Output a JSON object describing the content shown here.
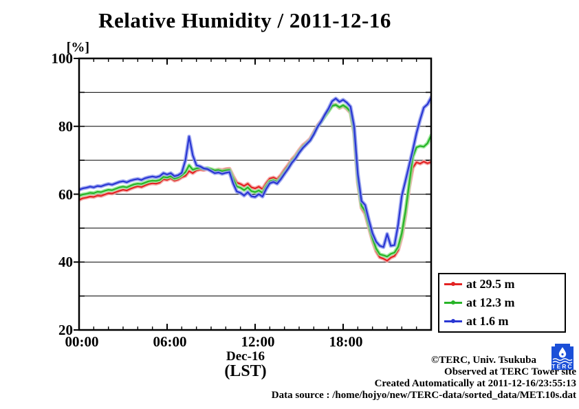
{
  "title": "Relative Humidity / 2011-12-16",
  "y_axis": {
    "unit_label": "[%]",
    "tick_labels": [
      {
        "value": 100,
        "text": "100"
      },
      {
        "value": 80,
        "text": "80"
      },
      {
        "value": 60,
        "text": "60"
      },
      {
        "value": 40,
        "text": "40"
      },
      {
        "value": 20,
        "text": "20"
      }
    ]
  },
  "x_axis": {
    "tick_labels": [
      {
        "hour": 0,
        "text": "00:00"
      },
      {
        "hour": 6,
        "text": "06:00"
      },
      {
        "hour": 12,
        "text": "12:00"
      },
      {
        "hour": 18,
        "text": "18:00"
      }
    ],
    "date_label": "Dec-16",
    "timezone_label": "(LST)"
  },
  "legend": {
    "items": [
      {
        "label": "at 29.5 m",
        "color": "#e32222",
        "halo": "#f5a0a0"
      },
      {
        "label": "at 12.3 m",
        "color": "#27b427",
        "halo": "#97e897"
      },
      {
        "label": "at 1.6 m",
        "color": "#2936d3",
        "halo": "#939cee"
      }
    ]
  },
  "footer": {
    "copyright": "©TERC, Univ. Tsukuba",
    "observed": "Observed at TERC Tower site",
    "created": "Created Automatically at 2011-12-16/23:55:13",
    "data_source": "Data source : /home/hojyo/new/TERC-data/sorted_data/MET.10s.dat"
  },
  "logo": {
    "text": "TERC",
    "color": "#1b4fd8"
  },
  "chart_data": {
    "type": "line",
    "title": "Relative Humidity / 2011-12-16",
    "xlabel": "Dec-16 (LST)",
    "ylabel": "[%]",
    "xlim": [
      0,
      24
    ],
    "ylim": [
      20,
      100
    ],
    "grid": "horizontal lines every 10%",
    "legend_position": "outside bottom-right",
    "x_unit": "hours",
    "x_start": 0,
    "x_step": 0.25,
    "series": [
      {
        "name": "at 29.5 m",
        "height_m": 29.5,
        "color": "#e32222",
        "halo": "#f5a0a0",
        "values": [
          58.3,
          58.8,
          59.0,
          59.3,
          59.2,
          59.6,
          59.5,
          59.9,
          60.3,
          60.2,
          60.6,
          61.0,
          61.3,
          61.1,
          61.6,
          62.0,
          62.3,
          62.1,
          62.6,
          63.0,
          63.2,
          63.1,
          63.4,
          64.4,
          64.2,
          64.7,
          64.0,
          64.3,
          65.0,
          65.4,
          66.8,
          66.2,
          67.0,
          67.3,
          67.1,
          67.4,
          67.2,
          67.0,
          67.3,
          67.1,
          67.4,
          67.5,
          65.3,
          63.4,
          63.0,
          62.4,
          63.1,
          62.0,
          61.7,
          62.2,
          61.5,
          63.2,
          64.6,
          64.9,
          64.4,
          65.6,
          67.2,
          68.6,
          70.2,
          71.4,
          73.0,
          74.4,
          75.3,
          76.3,
          78.2,
          80.2,
          81.6,
          83.2,
          84.6,
          86.2,
          86.4,
          85.4,
          86.0,
          85.2,
          84.0,
          78.0,
          63.5,
          56.0,
          54.2,
          50.3,
          46.3,
          43.2,
          41.4,
          41.0,
          40.4,
          41.3,
          41.8,
          43.5,
          47.5,
          54.0,
          62.0,
          67.8,
          69.4,
          69.0,
          69.6,
          69.1,
          69.5
        ]
      },
      {
        "name": "at 12.3 m",
        "height_m": 12.3,
        "color": "#27b427",
        "halo": "#97e897",
        "values": [
          59.5,
          59.9,
          60.1,
          60.4,
          60.3,
          60.7,
          60.6,
          61.0,
          61.3,
          61.2,
          61.6,
          62.0,
          62.2,
          62.0,
          62.5,
          62.9,
          63.1,
          63.0,
          63.4,
          63.8,
          64.0,
          63.9,
          64.2,
          65.1,
          64.9,
          65.3,
          64.6,
          64.9,
          65.6,
          66.5,
          68.5,
          67.2,
          67.6,
          67.8,
          67.5,
          67.7,
          67.4,
          67.0,
          67.1,
          66.8,
          67.0,
          67.1,
          64.6,
          62.3,
          61.9,
          61.2,
          62.0,
          60.9,
          60.6,
          61.1,
          60.4,
          62.3,
          63.8,
          64.1,
          63.7,
          64.9,
          66.5,
          67.9,
          69.6,
          70.9,
          72.5,
          73.9,
          74.9,
          75.9,
          77.8,
          79.9,
          81.3,
          82.9,
          84.4,
          86.0,
          86.3,
          85.6,
          86.2,
          85.5,
          84.3,
          78.6,
          64.5,
          56.6,
          55.0,
          51.0,
          47.0,
          44.0,
          42.3,
          42.0,
          41.6,
          42.4,
          42.8,
          44.5,
          48.5,
          55.0,
          63.0,
          71.0,
          73.8,
          74.2,
          74.0,
          75.0,
          77.3
        ]
      },
      {
        "name": "at 1.6 m",
        "height_m": 1.6,
        "color": "#2936d3",
        "halo": "#939cee",
        "values": [
          61.3,
          61.7,
          61.9,
          62.2,
          62.0,
          62.4,
          62.3,
          62.7,
          63.0,
          62.8,
          63.2,
          63.6,
          63.8,
          63.5,
          64.0,
          64.3,
          64.5,
          64.2,
          64.7,
          65.0,
          65.2,
          65.0,
          65.3,
          66.2,
          65.8,
          66.2,
          65.3,
          65.6,
          66.3,
          70.0,
          77.0,
          71.5,
          68.5,
          68.2,
          67.6,
          67.4,
          66.8,
          66.2,
          66.4,
          66.0,
          66.3,
          66.5,
          63.2,
          60.8,
          60.4,
          59.6,
          60.6,
          59.4,
          59.2,
          60.0,
          59.3,
          61.5,
          63.2,
          63.6,
          63.1,
          64.4,
          66.0,
          67.5,
          69.2,
          70.5,
          72.2,
          73.6,
          74.7,
          75.8,
          77.6,
          79.8,
          81.4,
          83.4,
          85.2,
          87.4,
          88.2,
          87.2,
          87.8,
          87.0,
          85.8,
          80.0,
          66.0,
          58.0,
          56.8,
          52.5,
          48.5,
          46.0,
          44.8,
          44.4,
          48.3,
          44.8,
          45.0,
          51.0,
          59.5,
          64.0,
          68.5,
          73.0,
          78.0,
          82.0,
          85.5,
          86.5,
          88.5
        ]
      }
    ]
  }
}
